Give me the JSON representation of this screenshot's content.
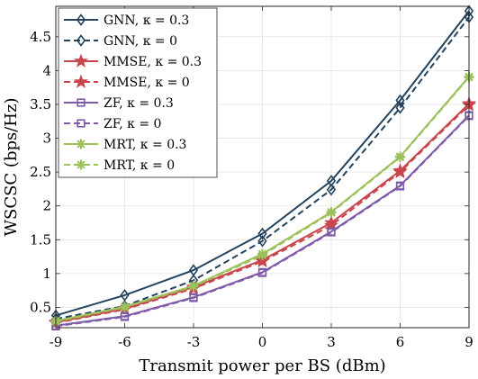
{
  "chart_data": {
    "type": "line",
    "title": "",
    "xlabel": "Transmit power per BS (dBm)",
    "ylabel": "WSCSC (bps/Hz)",
    "x": [
      -9,
      -6,
      -3,
      0,
      3,
      6,
      9
    ],
    "x_tick_labels": [
      "-9",
      "-6",
      "-3",
      "0",
      "3",
      "6",
      "9"
    ],
    "xlim": [
      -9,
      9
    ],
    "ylim": [
      0.2,
      4.95
    ],
    "y_ticks": [
      0.5,
      1,
      1.5,
      2,
      2.5,
      3,
      3.5,
      4,
      4.5
    ],
    "y_tick_labels": [
      "0.5",
      "1",
      "1.5",
      "2",
      "2.5",
      "3",
      "3.5",
      "4",
      "4.5"
    ],
    "grid": true,
    "legend_position": "top-left",
    "series": [
      {
        "name": "GNN, κ = 0.3",
        "values": [
          0.38,
          0.68,
          1.05,
          1.59,
          2.37,
          3.56,
          4.88
        ],
        "color": "#24435e",
        "dash": "solid",
        "marker": "diamond"
      },
      {
        "name": "GNN, κ = 0",
        "values": [
          0.33,
          0.52,
          0.9,
          1.48,
          2.24,
          3.45,
          4.79
        ],
        "color": "#24435e",
        "dash": "dashed",
        "marker": "diamond"
      },
      {
        "name": "MMSE, κ = 0.3",
        "values": [
          0.28,
          0.48,
          0.8,
          1.2,
          1.75,
          2.52,
          3.51
        ],
        "color": "#c8464b",
        "dash": "solid",
        "marker": "star"
      },
      {
        "name": "MMSE, κ = 0",
        "values": [
          0.27,
          0.47,
          0.78,
          1.18,
          1.71,
          2.5,
          3.49
        ],
        "color": "#c8464b",
        "dash": "dashed",
        "marker": "star"
      },
      {
        "name": "ZF, κ = 0.3",
        "values": [
          0.23,
          0.37,
          0.65,
          1.02,
          1.62,
          2.3,
          3.34
        ],
        "color": "#7e5aa8",
        "dash": "solid",
        "marker": "square"
      },
      {
        "name": "ZF, κ = 0",
        "values": [
          0.22,
          0.36,
          0.64,
          1.01,
          1.61,
          2.29,
          3.33
        ],
        "color": "#7e5aa8",
        "dash": "dashed",
        "marker": "square"
      },
      {
        "name": "MRT, κ = 0.3",
        "values": [
          0.3,
          0.51,
          0.82,
          1.29,
          1.91,
          2.73,
          3.91
        ],
        "color": "#9dc15a",
        "dash": "solid",
        "marker": "asterisk"
      },
      {
        "name": "MRT, κ = 0",
        "values": [
          0.29,
          0.5,
          0.81,
          1.27,
          1.9,
          2.72,
          3.9
        ],
        "color": "#9dc15a",
        "dash": "dashed",
        "marker": "asterisk"
      }
    ]
  }
}
